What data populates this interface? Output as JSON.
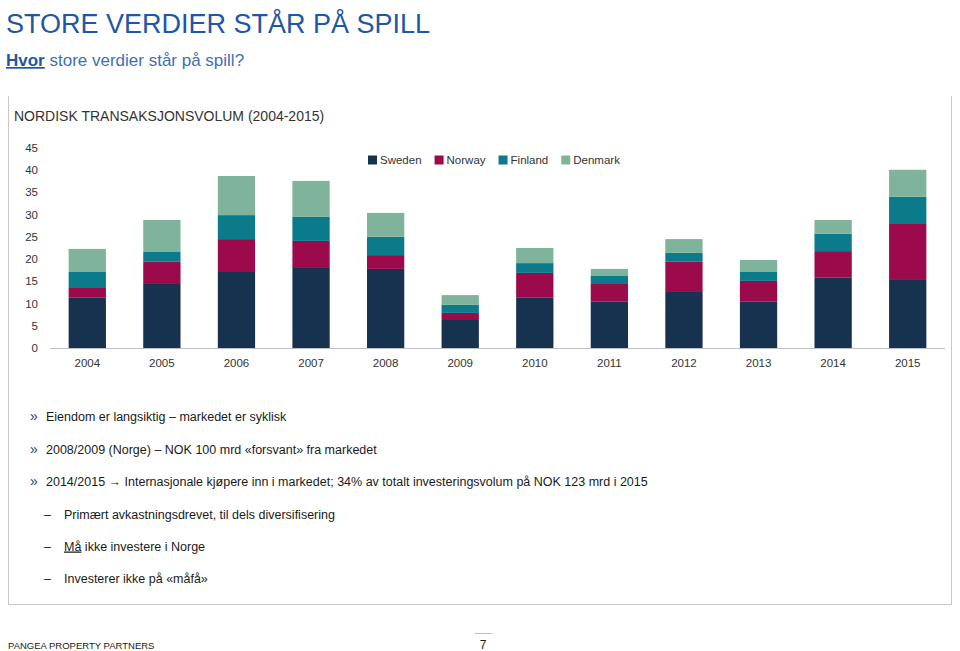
{
  "header": {
    "title": "STORE VERDIER STÅR PÅ SPILL",
    "subtitle": [
      {
        "text": "Hvor",
        "underline": true
      },
      {
        "text": " store verdier står på spill?"
      }
    ]
  },
  "chart_data": {
    "type": "bar",
    "stacked": true,
    "title": "NORDISK TRANSAKSJONSVOLUM (2004-2015)",
    "categories": [
      "2004",
      "2005",
      "2006",
      "2007",
      "2008",
      "2009",
      "2010",
      "2011",
      "2012",
      "2013",
      "2014",
      "2015"
    ],
    "series": [
      {
        "name": "Sweden",
        "color": "#17324f",
        "values": [
          11.3,
          14.6,
          17.1,
          18.2,
          17.8,
          6.3,
          11.3,
          10.4,
          12.8,
          10.4,
          15.8,
          15.5
        ]
      },
      {
        "name": "Norway",
        "color": "#9b0a4a",
        "values": [
          2.2,
          4.8,
          7.4,
          5.9,
          3.1,
          1.6,
          5.6,
          4.0,
          6.6,
          4.7,
          6.0,
          12.4
        ]
      },
      {
        "name": "Finland",
        "color": "#0b7a8a",
        "values": [
          3.6,
          2.2,
          5.4,
          5.4,
          4.1,
          1.8,
          2.2,
          1.8,
          2.0,
          2.0,
          3.9,
          6.1
        ]
      },
      {
        "name": "Denmark",
        "color": "#7fb39b",
        "values": [
          5.2,
          7.2,
          8.8,
          8.1,
          5.4,
          2.2,
          3.4,
          1.6,
          3.1,
          2.7,
          3.1,
          6.1
        ]
      }
    ],
    "ylim": [
      0,
      45
    ],
    "yticks": [
      0,
      5,
      10,
      15,
      20,
      25,
      30,
      35,
      40,
      45
    ],
    "grid": false,
    "legend": "top-right"
  },
  "bullets": [
    {
      "marker": "»",
      "parts": [
        {
          "text": "Eiendom er langsiktig – markedet er syklisk"
        }
      ]
    },
    {
      "marker": "»",
      "parts": [
        {
          "text": "2008/2009 (Norge) – NOK 100 mrd «forsvant» fra markedet"
        }
      ]
    },
    {
      "marker": "»",
      "parts": [
        {
          "text": "2014/2015 → Internasjonale kjøpere inn i markedet; 34% av totalt investeringsvolum på NOK 123 mrd i 2015"
        }
      ]
    }
  ],
  "sub_bullets": [
    {
      "marker": "–",
      "parts": [
        {
          "text": "Primært avkastningsdrevet, til dels diversifisering"
        }
      ]
    },
    {
      "marker": "–",
      "parts": [
        {
          "text": "Må",
          "underline": true
        },
        {
          "text": " ikke investere i Norge"
        }
      ]
    },
    {
      "marker": "–",
      "parts": [
        {
          "text": "Investerer ikke på «måfå»"
        }
      ]
    }
  ],
  "footer": {
    "company": "PANGEA PROPERTY PARTNERS",
    "page": "7"
  }
}
